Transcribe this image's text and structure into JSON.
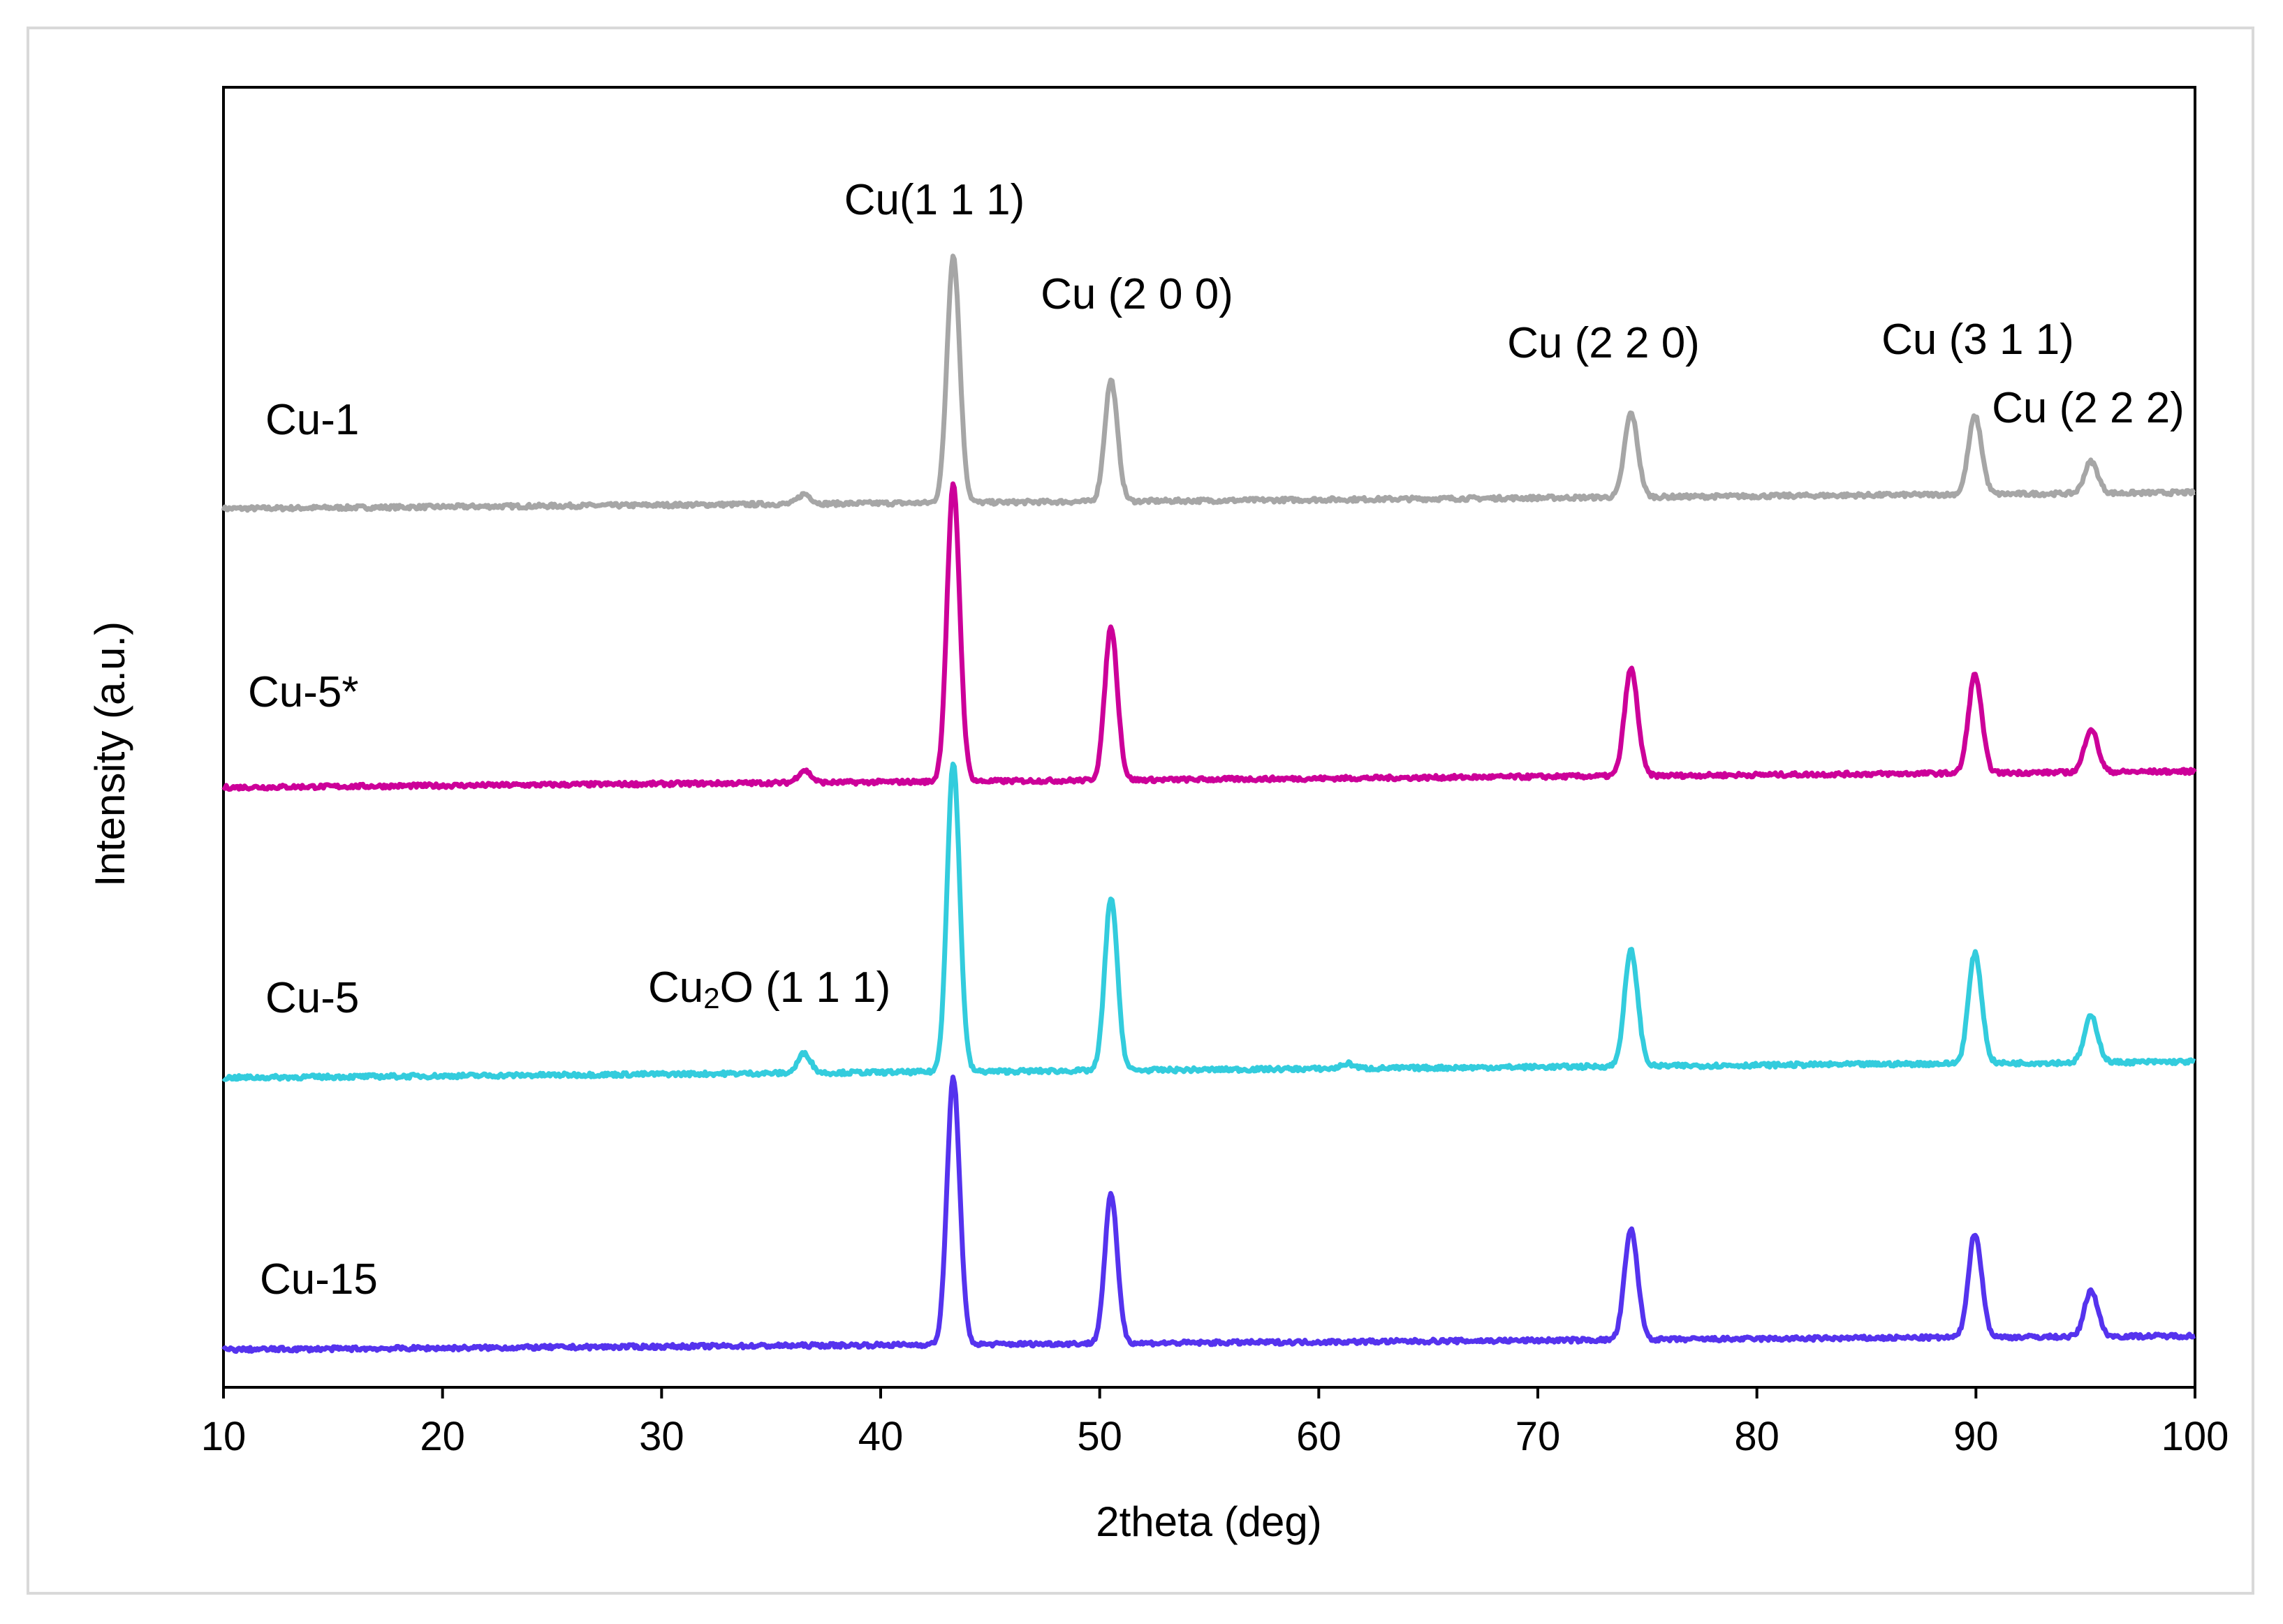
{
  "chart_data": {
    "type": "line",
    "title": "",
    "xlabel": "2theta (deg)",
    "ylabel": "Intensity (a.u.)",
    "xlim": [
      10,
      100
    ],
    "xticks": [
      10,
      20,
      30,
      40,
      50,
      60,
      70,
      80,
      90,
      100
    ],
    "yticks_shown": false,
    "grid": false,
    "colors": {
      "Cu-1": "#a6a6a6",
      "Cu-5*": "#cc0099",
      "Cu-5": "#33ccdd",
      "Cu-15": "#5533ee"
    },
    "series": [
      {
        "name": "Cu-1",
        "label": "Cu-1",
        "color": "#a6a6a6",
        "baseline_start": 3.65,
        "baseline_end": 3.72,
        "peaks": [
          {
            "x": 36.5,
            "height": 0.04
          },
          {
            "x": 43.3,
            "height": 1.0
          },
          {
            "x": 50.5,
            "height": 0.49
          },
          {
            "x": 74.2,
            "height": 0.29
          },
          {
            "x": 89.9,
            "height": 0.27
          },
          {
            "x": 95.2,
            "height": 0.11
          }
        ]
      },
      {
        "name": "Cu-5*",
        "label": "Cu-5*",
        "color": "#cc0099",
        "baseline_start": 2.44,
        "baseline_end": 2.51,
        "peaks": [
          {
            "x": 36.5,
            "height": 0.05
          },
          {
            "x": 43.3,
            "height": 1.2
          },
          {
            "x": 50.5,
            "height": 0.62
          },
          {
            "x": 74.2,
            "height": 0.37
          },
          {
            "x": 89.9,
            "height": 0.34
          },
          {
            "x": 95.2,
            "height": 0.15
          }
        ]
      },
      {
        "name": "Cu-5",
        "label": "Cu-5",
        "color": "#33ccdd",
        "baseline_start": 1.18,
        "baseline_end": 1.25,
        "peaks": [
          {
            "x": 36.5,
            "height": 0.08
          },
          {
            "x": 43.3,
            "height": 1.25
          },
          {
            "x": 50.5,
            "height": 0.7
          },
          {
            "x": 61.3,
            "height": 0.02
          },
          {
            "x": 74.2,
            "height": 0.4
          },
          {
            "x": 89.9,
            "height": 0.38
          },
          {
            "x": 95.2,
            "height": 0.16
          }
        ]
      },
      {
        "name": "Cu-15",
        "label": "Cu-15",
        "color": "#5533ee",
        "baseline_start": 0.0,
        "baseline_end": 0.06,
        "peaks": [
          {
            "x": 43.3,
            "height": 1.08
          },
          {
            "x": 50.5,
            "height": 0.6
          },
          {
            "x": 74.2,
            "height": 0.38
          },
          {
            "x": 89.9,
            "height": 0.36
          },
          {
            "x": 95.2,
            "height": 0.16
          }
        ]
      }
    ],
    "annotations": [
      {
        "id": "cu111",
        "prefix": "Cu(1 1 1)",
        "sub": "",
        "suffix": "",
        "x": 43.3
      },
      {
        "id": "cu200",
        "prefix": "Cu (2 0 0)",
        "sub": "",
        "suffix": "",
        "x": 50.5
      },
      {
        "id": "cu220",
        "prefix": "Cu (2 2 0)",
        "sub": "",
        "suffix": "",
        "x": 74.2
      },
      {
        "id": "cu311",
        "prefix": "Cu (3 1 1)",
        "sub": "",
        "suffix": "",
        "x": 89.9
      },
      {
        "id": "cu222",
        "prefix": "Cu (2 2 2)",
        "sub": "",
        "suffix": "",
        "x": 95.2
      },
      {
        "id": "cu2o111",
        "prefix": "Cu",
        "sub": "2",
        "suffix": "O (1 1 1)",
        "x": 36.5
      }
    ]
  }
}
